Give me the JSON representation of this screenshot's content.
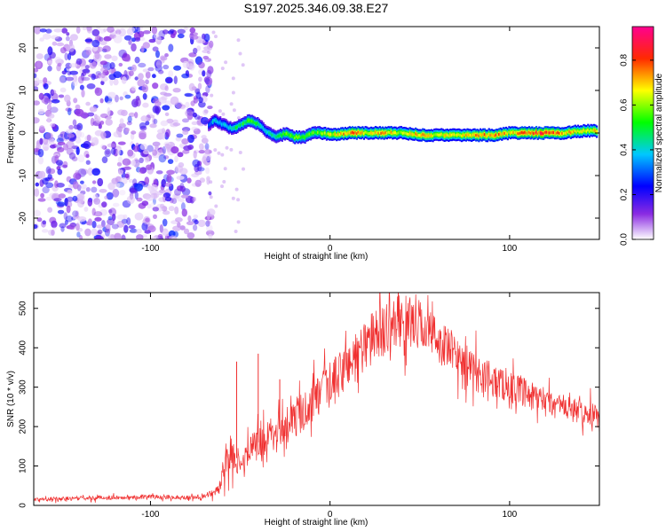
{
  "chart_data": [
    {
      "type": "heatmap",
      "title": "S197.2025.346.09.38.E27",
      "xlabel": "Height of straight line (km)",
      "ylabel": "Frequency (Hz)",
      "xlim": [
        -165,
        150
      ],
      "ylim": [
        -25,
        25
      ],
      "x_ticks": [
        -100,
        0,
        100
      ],
      "y_ticks": [
        -20,
        -10,
        0,
        10,
        20
      ],
      "noise_region_x": [
        -165,
        -68
      ],
      "ridge": {
        "x": [
          -68,
          -65,
          -60,
          -55,
          -50,
          -45,
          -40,
          -35,
          -30,
          -25,
          -20,
          -15,
          -10,
          -5,
          0,
          10,
          20,
          30,
          40,
          50,
          60,
          70,
          80,
          90,
          100,
          110,
          120,
          130,
          140,
          148
        ],
        "freq": [
          2,
          3,
          2,
          1,
          2,
          3,
          2,
          0,
          -1,
          0,
          -1,
          -1,
          0,
          0,
          -0.5,
          0,
          0,
          0,
          0,
          -0.5,
          -0.5,
          -0.5,
          -0.5,
          -0.5,
          0,
          0,
          0,
          0,
          0.5,
          0.5
        ],
        "amp": [
          0.35,
          0.45,
          0.4,
          0.5,
          0.55,
          0.6,
          0.5,
          0.45,
          0.55,
          0.6,
          0.65,
          0.6,
          0.6,
          0.65,
          0.7,
          0.85,
          0.75,
          0.8,
          0.7,
          0.8,
          0.7,
          0.75,
          0.8,
          0.85,
          0.75,
          0.9,
          0.9,
          0.8,
          0.7,
          0.75
        ]
      },
      "colorbar": {
        "label": "Normalized spectral amplitude",
        "range": [
          0,
          0.95
        ],
        "ticks": [
          "0.0",
          "0.2",
          "0.4",
          "0.6",
          "0.8"
        ],
        "tick_values": [
          0,
          0.2,
          0.4,
          0.6,
          0.8
        ]
      }
    },
    {
      "type": "line",
      "title": "",
      "xlabel": "Height of straight line (km)",
      "ylabel": "SNR (10 * v/v)",
      "xlim": [
        -165,
        150
      ],
      "ylim": [
        0,
        540
      ],
      "x_ticks": [
        -100,
        0,
        100
      ],
      "y_ticks": [
        0,
        100,
        200,
        300,
        400,
        500
      ],
      "series": [
        {
          "name": "SNR",
          "color": "#f03030",
          "x": [
            -165,
            -140,
            -120,
            -100,
            -80,
            -70,
            -62,
            -58,
            -55,
            -52,
            -50,
            -45,
            -40,
            -35,
            -30,
            -25,
            -20,
            -10,
            0,
            10,
            20,
            30,
            40,
            50,
            60,
            70,
            80,
            90,
            100,
            110,
            120,
            130,
            140,
            150
          ],
          "values": [
            15,
            18,
            20,
            22,
            20,
            22,
            40,
            100,
            140,
            120,
            90,
            140,
            160,
            170,
            200,
            200,
            220,
            260,
            300,
            360,
            410,
            450,
            470,
            460,
            420,
            380,
            340,
            320,
            300,
            280,
            260,
            250,
            235,
            225
          ],
          "spread": [
            10,
            12,
            12,
            12,
            12,
            14,
            30,
            80,
            100,
            80,
            60,
            80,
            90,
            90,
            100,
            100,
            110,
            120,
            130,
            140,
            150,
            150,
            150,
            140,
            130,
            120,
            110,
            100,
            90,
            85,
            80,
            75,
            70,
            65
          ]
        }
      ],
      "spikes": [
        {
          "x": -52,
          "value": 365
        },
        {
          "x": -40,
          "value": 385
        },
        {
          "x": -28,
          "value": 320
        },
        {
          "x": 38,
          "value": 545
        }
      ]
    }
  ]
}
